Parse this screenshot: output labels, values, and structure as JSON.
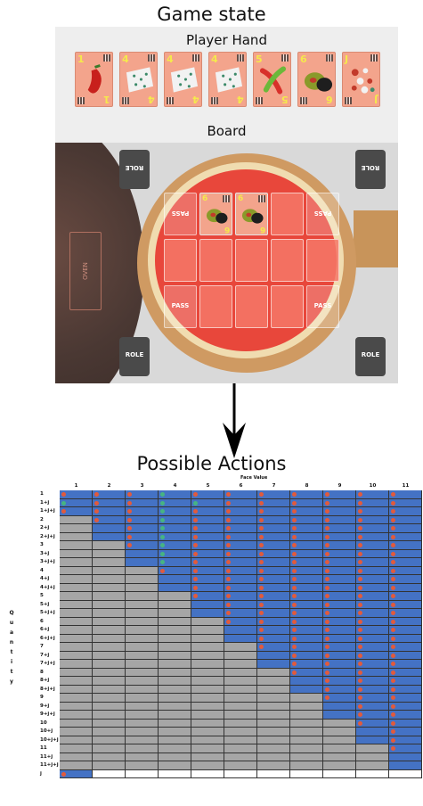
{
  "titles": {
    "game_state": "Game state",
    "possible_actions": "Possible Actions"
  },
  "hand": {
    "label": "Player Hand",
    "cards": [
      {
        "value": "1",
        "topping": "chili-pepper-icon"
      },
      {
        "value": "4",
        "topping": "cheese-icon"
      },
      {
        "value": "4",
        "topping": "cheese-icon"
      },
      {
        "value": "4",
        "topping": "cheese-icon"
      },
      {
        "value": "5",
        "topping": "peppers-icon"
      },
      {
        "value": "6",
        "topping": "olives-icon"
      },
      {
        "value": "J",
        "topping": "mixed-toppings-icon"
      }
    ]
  },
  "board": {
    "label": "Board",
    "oven_label": "OVEN",
    "role_label": "ROLE",
    "pass_label": "PASS",
    "played_cards": [
      {
        "value": "6",
        "topping": "olives-icon"
      },
      {
        "value": "6",
        "topping": "olives-icon"
      }
    ]
  },
  "actions_table": {
    "column_header": "Face Value",
    "row_header": "Quantity",
    "columns": [
      "1",
      "2",
      "3",
      "4",
      "5",
      "6",
      "7",
      "8",
      "9",
      "10",
      "11"
    ],
    "rows": [
      "1",
      "1+j",
      "1+j+j",
      "2",
      "2+j",
      "2+j+j",
      "3",
      "3+j",
      "3+j+j",
      "4",
      "4+j",
      "4+j+j",
      "5",
      "5+j",
      "5+j+j",
      "6",
      "6+j",
      "6+j+j",
      "7",
      "7+j",
      "7+j+j",
      "8",
      "8+j",
      "8+j+j",
      "9",
      "9+j",
      "9+j+j",
      "10",
      "10+j",
      "10+j+j",
      "11",
      "11+j",
      "11+j+j",
      "j"
    ],
    "colors": {
      "available": "#4472c4",
      "unavailable": "#a6a6a6",
      "legal": "#e15a3c",
      "selected": "#46b482"
    }
  }
}
